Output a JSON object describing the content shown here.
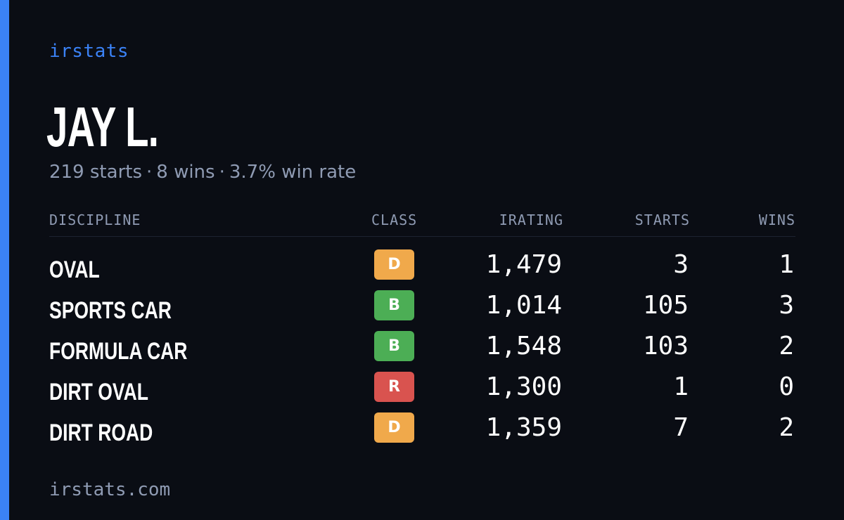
{
  "brand": "irstats",
  "driver": {
    "name": "JAY L.",
    "starts_text": "219 starts",
    "wins_text": "8 wins",
    "win_rate_text": "3.7% win rate",
    "separator": "·"
  },
  "table": {
    "headers": {
      "discipline": "DISCIPLINE",
      "class": "CLASS",
      "irating": "IRATING",
      "starts": "STARTS",
      "wins": "WINS"
    },
    "rows": [
      {
        "discipline": "OVAL",
        "class": "D",
        "class_color": "#f0a94b",
        "irating": "1,479",
        "starts": "3",
        "wins": "1"
      },
      {
        "discipline": "SPORTS CAR",
        "class": "B",
        "class_color": "#4cae55",
        "irating": "1,014",
        "starts": "105",
        "wins": "3"
      },
      {
        "discipline": "FORMULA CAR",
        "class": "B",
        "class_color": "#4cae55",
        "irating": "1,548",
        "starts": "103",
        "wins": "2"
      },
      {
        "discipline": "DIRT OVAL",
        "class": "R",
        "class_color": "#d9534f",
        "irating": "1,300",
        "starts": "1",
        "wins": "0"
      },
      {
        "discipline": "DIRT ROAD",
        "class": "D",
        "class_color": "#f0a94b",
        "irating": "1,359",
        "starts": "7",
        "wins": "2"
      }
    ]
  },
  "footer": "irstats.com",
  "colors": {
    "background": "#0a0d14",
    "accent": "#3b82f6",
    "muted_text": "#8f9bb3"
  }
}
